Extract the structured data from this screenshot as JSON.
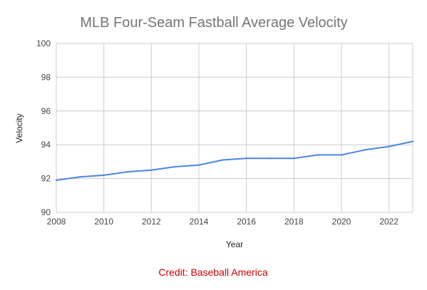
{
  "chart_data": {
    "type": "line",
    "title": "MLB Four-Seam Fastball Average Velocity",
    "xlabel": "Year",
    "ylabel": "Velocity",
    "xlim": [
      2008,
      2023
    ],
    "ylim": [
      90,
      100
    ],
    "x_ticks": [
      "2008",
      "2010",
      "2012",
      "2014",
      "2016",
      "2018",
      "2020",
      "2022"
    ],
    "y_ticks": [
      "90",
      "92",
      "94",
      "96",
      "98",
      "100"
    ],
    "grid": true,
    "x": [
      2008,
      2009,
      2010,
      2011,
      2012,
      2013,
      2014,
      2015,
      2016,
      2017,
      2018,
      2019,
      2020,
      2021,
      2022,
      2023
    ],
    "series": [
      {
        "values": [
          91.9,
          92.1,
          92.2,
          92.4,
          92.5,
          92.7,
          92.8,
          93.1,
          93.2,
          93.2,
          93.2,
          93.4,
          93.4,
          93.7,
          93.9,
          94.2
        ]
      }
    ]
  },
  "credit": "Credit: Baseball America",
  "colors": {
    "line": "#4a86e8",
    "title": "#757575",
    "credit": "#cc0000",
    "grid": "#cccccc"
  }
}
